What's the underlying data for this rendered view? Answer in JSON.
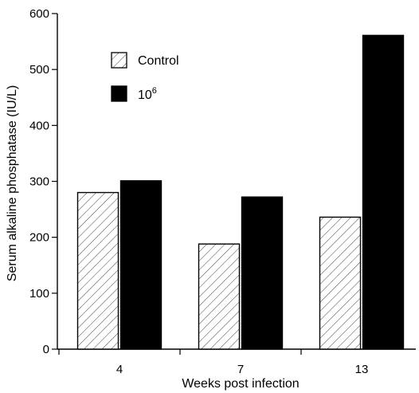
{
  "chart_data": {
    "type": "bar",
    "title": "",
    "xlabel": "Weeks post infection",
    "ylabel": "Serum alkaline phosphatase (IU/L)",
    "categories": [
      "4",
      "7",
      "13"
    ],
    "ylim": [
      0,
      600
    ],
    "yticks": [
      "0",
      "100",
      "200",
      "300",
      "400",
      "500",
      "600"
    ],
    "legend_position": "top-left",
    "series": [
      {
        "name": "Control",
        "values": [
          280,
          188,
          236
        ],
        "pattern": "hatched",
        "color": "#ffffff"
      },
      {
        "name": "10^6",
        "legend_base": "10",
        "legend_sup": "6",
        "values": [
          301,
          272,
          561
        ],
        "pattern": "solid",
        "color": "#000000"
      }
    ]
  }
}
